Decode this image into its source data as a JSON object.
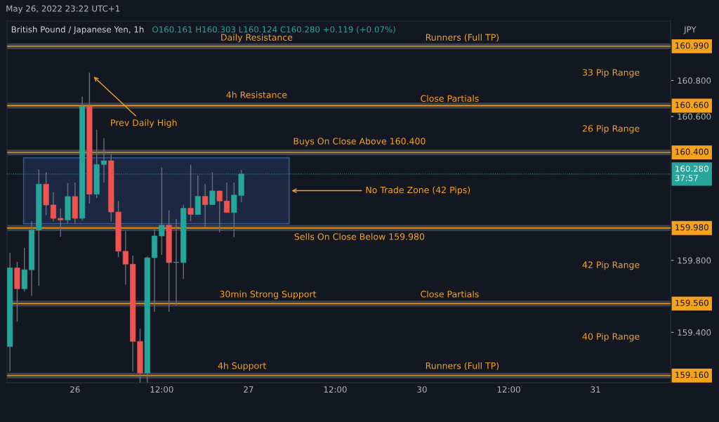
{
  "chart_data": {
    "type": "candlestick",
    "title": "British Pound / Japanese Yen, 1h",
    "subtitle": "O160.161 H160.303 L160.124 C160.280 +0.119 (+0.07%)",
    "ylabel": "JPY",
    "categories": [
      null,
      null,
      null,
      null,
      null,
      null,
      null,
      null,
      null,
      "26",
      null,
      null,
      null,
      null,
      null,
      null,
      null,
      null,
      null,
      null,
      null,
      "12:00",
      null,
      null,
      null,
      null,
      null,
      null,
      null,
      null,
      null,
      null,
      null,
      "27",
      null,
      null,
      null,
      null,
      null,
      null,
      null,
      null,
      null,
      null,
      null,
      "12:00",
      null,
      null,
      null,
      null,
      null,
      null,
      null,
      null,
      null,
      null,
      null,
      "30",
      null,
      null,
      null,
      null,
      null,
      null,
      null,
      null,
      null,
      null,
      null,
      "12:00",
      null,
      null,
      null,
      null,
      null,
      null,
      null,
      null,
      null,
      null,
      null,
      "31",
      null,
      null,
      null,
      null,
      null,
      null,
      null,
      null,
      null,
      null
    ],
    "ohlc": [
      [
        159.321,
        159.841,
        159.184,
        159.758
      ],
      [
        159.758,
        159.792,
        159.46,
        159.642
      ],
      [
        159.642,
        159.871,
        159.627,
        159.748
      ],
      [
        159.748,
        160.018,
        159.603,
        159.969
      ],
      [
        159.969,
        160.306,
        159.658,
        160.224
      ],
      [
        160.224,
        160.289,
        160.052,
        160.108
      ],
      [
        160.108,
        160.18,
        160.017,
        160.034
      ],
      [
        160.034,
        160.089,
        159.932,
        160.025
      ],
      [
        160.025,
        160.23,
        160.005,
        160.155
      ],
      [
        160.155,
        160.233,
        160.003,
        160.034
      ],
      [
        160.034,
        160.711,
        160.022,
        160.657
      ],
      [
        160.657,
        160.843,
        160.116,
        160.168
      ],
      [
        160.168,
        160.526,
        160.147,
        160.333
      ],
      [
        160.333,
        160.479,
        160.234,
        160.354
      ],
      [
        160.354,
        160.39,
        160.017,
        160.069
      ],
      [
        160.069,
        160.129,
        159.818,
        159.851
      ],
      [
        159.851,
        159.965,
        159.666,
        159.779
      ],
      [
        159.779,
        159.827,
        159.184,
        159.35
      ],
      [
        159.35,
        159.421,
        159.119,
        159.174
      ],
      [
        159.174,
        159.822,
        159.119,
        159.815
      ],
      [
        159.815,
        159.98,
        159.515,
        159.936
      ],
      [
        159.936,
        160.316,
        159.831,
        159.996
      ],
      [
        159.996,
        160.078,
        159.515,
        159.788
      ],
      [
        159.788,
        160.03,
        159.551,
        159.788
      ],
      [
        159.788,
        160.11,
        159.697,
        160.09
      ],
      [
        160.09,
        160.332,
        160.017,
        160.055
      ],
      [
        160.055,
        160.273,
        160.055,
        160.156
      ],
      [
        160.156,
        160.226,
        159.984,
        160.11
      ],
      [
        160.11,
        160.289,
        160.11,
        160.186
      ],
      [
        160.186,
        160.186,
        159.956,
        160.13
      ],
      [
        160.13,
        160.233,
        160.066,
        160.066
      ],
      [
        160.066,
        160.233,
        159.93,
        160.163
      ],
      [
        160.161,
        160.303,
        160.124,
        160.28
      ],
      null,
      null,
      null,
      null,
      null,
      null,
      null,
      null,
      null,
      null,
      null,
      null,
      null,
      null,
      null,
      null,
      null,
      null,
      null,
      null,
      null,
      null,
      null,
      null,
      null,
      null,
      null,
      null,
      null,
      null,
      null,
      null,
      null,
      null,
      null,
      null,
      null,
      null,
      null,
      null,
      null,
      null,
      null,
      null,
      null,
      null,
      null,
      null,
      null,
      null,
      null,
      null,
      null,
      null,
      null,
      null,
      null,
      null,
      null
    ],
    "colors": [
      "#26a69a",
      "#ef5350",
      "#26a69a",
      "#26a69a",
      "#26a69a",
      "#ef5350",
      "#ef5350",
      "#ef5350",
      "#26a69a",
      "#ef5350",
      "#26a69a",
      "#ef5350",
      "#26a69a",
      "#26a69a",
      "#ef5350",
      "#ef5350",
      "#ef5350",
      "#ef5350",
      "#ef5350",
      "#26a69a",
      "#26a69a",
      "#26a69a",
      "#ef5350",
      "#26a69a",
      "#26a69a",
      "#ef5350",
      "#26a69a",
      "#ef5350",
      "#26a69a",
      "#ef5350",
      "#ef5350",
      "#26a69a",
      "#26a69a",
      null,
      null,
      null,
      null,
      null,
      null,
      null,
      null,
      null,
      null,
      null,
      null,
      null,
      null,
      null,
      null,
      null,
      null,
      null,
      null,
      null,
      null,
      null,
      null,
      null,
      null,
      null,
      null,
      null,
      null,
      null,
      null,
      null,
      null,
      null,
      null,
      null,
      null,
      null,
      null,
      null,
      null,
      null,
      null,
      null,
      null,
      null,
      null,
      null,
      null,
      null,
      null,
      null,
      null,
      null,
      null,
      null,
      null,
      null
    ],
    "ylim": [
      159.12,
      161.13
    ],
    "yticks": [
      {
        "value": 159.4,
        "label": "159.400"
      },
      {
        "value": 159.8,
        "label": "159.800"
      },
      {
        "value": 160.6,
        "label": "160.600"
      },
      {
        "value": 160.8,
        "label": "160.800"
      }
    ],
    "ref_lines": [
      {
        "axis": "y",
        "value": 160.99,
        "label": "160.990",
        "color": "#f7a21b",
        "line_style": "solid"
      },
      {
        "axis": "y",
        "value": 160.66,
        "label": "160.660",
        "color": "#f7a21b",
        "line_style": "solid"
      },
      {
        "axis": "y",
        "value": 160.4,
        "label": "160.400",
        "color": "#f7a21b",
        "line_style": "solid"
      },
      {
        "axis": "y",
        "value": 159.98,
        "label": "159.980",
        "color": "#f7a21b",
        "line_style": "solid"
      },
      {
        "axis": "y",
        "value": 159.56,
        "label": "159.560",
        "color": "#f7a21b",
        "line_style": "solid"
      },
      {
        "axis": "y",
        "value": 159.16,
        "label": "159.160",
        "color": "#f7a21b",
        "line_style": "solid"
      },
      {
        "axis": "y",
        "value": 160.28,
        "label": "160.280\n37:57",
        "color": "#26a69a",
        "line_style": "dotted"
      }
    ],
    "bands": [
      {
        "axis": "y",
        "from": 160.004,
        "to": 160.371,
        "label": "No Trade Zone (42 Pips)",
        "color": "#1e2a45"
      }
    ],
    "annotations": [
      "Daily Resistance",
      "Runners (Full TP)",
      "33 Pip Range",
      "4h Resistance",
      "Close Partials",
      "Prev Daily High",
      "26 Pip Range",
      "Buys On Close Above 160.400",
      "Sells On Close Below 159.980",
      "42 Pip Range",
      "30min Strong Support",
      "Close Partials",
      "40 Pip Range",
      "4h Support",
      "Runners (Full TP)",
      "May 26, 2022 23:22 UTC+1"
    ],
    "grid": false,
    "legend": false
  }
}
